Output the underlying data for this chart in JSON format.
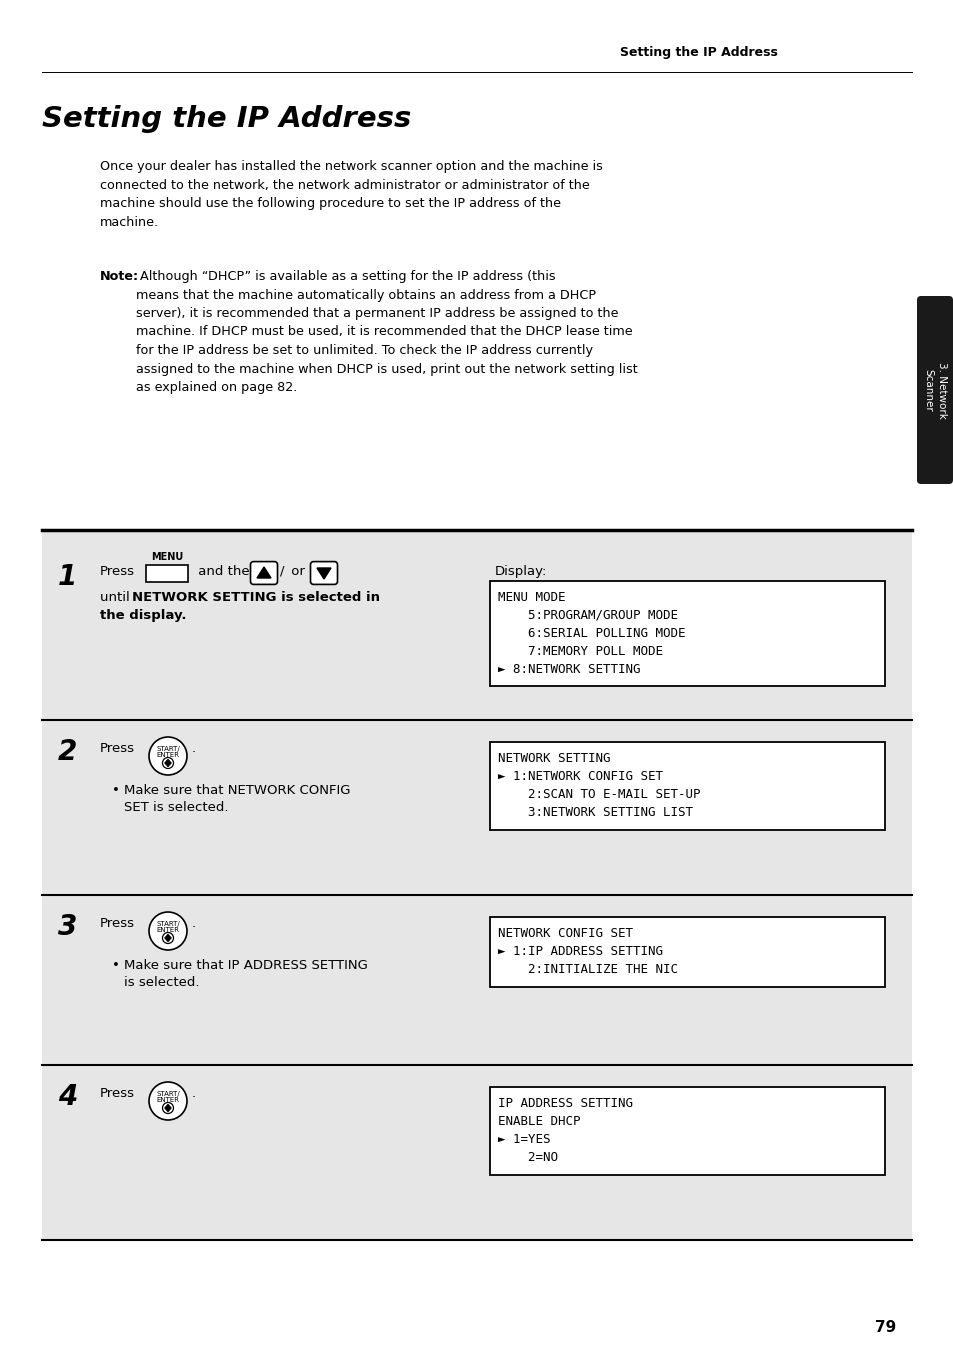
{
  "page_header": "Setting the IP Address",
  "main_title": "Setting the IP Address",
  "body_text": "Once your dealer has installed the network scanner option and the machine is\nconnected to the network, the network administrator or administrator of the\nmachine should use the following procedure to set the IP address of the\nmachine.",
  "note_bold": "Note:",
  "note_rest": " Although “DHCP” is available as a setting for the IP address (this\nmeans that the machine automatically obtains an address from a DHCP\nserver), it is recommended that a permanent IP address be assigned to the\nmachine. If DHCP must be used, it is recommended that the DHCP lease time\nfor the IP address be set to unlimited. To check the IP address currently\nassigned to the machine when DHCP is used, print out the network setting list\nas explained on page 82.",
  "sidebar_text": "3. Network\nScanner",
  "steps": [
    {
      "number": "1",
      "display_label": "Display:",
      "display_lines": [
        "MENU MODE",
        "    5:PROGRAM/GROUP MODE",
        "    6:SERIAL POLLING MODE",
        "    7:MEMORY POLL MODE",
        "► 8:NETWORK SETTING"
      ]
    },
    {
      "number": "2",
      "bullet": "Make sure that NETWORK CONFIG\nSET is selected.",
      "display_lines": [
        "NETWORK SETTING",
        "► 1:NETWORK CONFIG SET",
        "    2:SCAN TO E-MAIL SET-UP",
        "    3:NETWORK SETTING LIST"
      ]
    },
    {
      "number": "3",
      "bullet": "Make sure that IP ADDRESS SETTING\nis selected.",
      "display_lines": [
        "NETWORK CONFIG SET",
        "► 1:IP ADDRESS SETTING",
        "    2:INITIALIZE THE NIC"
      ]
    },
    {
      "number": "4",
      "display_lines": [
        "IP ADDRESS SETTING",
        "ENABLE DHCP",
        "► 1=YES",
        "    2=NO"
      ]
    }
  ],
  "step_tops": [
    545,
    720,
    895,
    1065
  ],
  "step_bots": [
    720,
    895,
    1065,
    1235
  ],
  "page_number": "79",
  "bg_color": "#ffffff",
  "step_bg_color": "#e6e6e6",
  "display_bg_color": "#ffffff",
  "sidebar_bg": "#1a1a1a",
  "sidebar_text_color": "#ffffff"
}
